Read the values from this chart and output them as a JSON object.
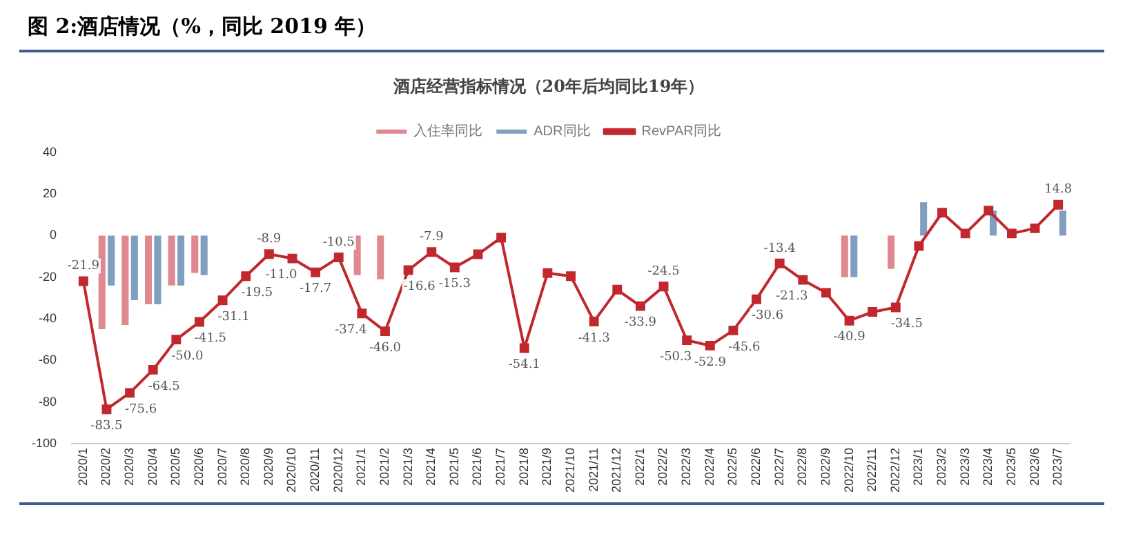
{
  "chart_data": {
    "type": "bar",
    "title": "图 2:酒店情况（%，同比 2019 年）",
    "subtitle": "酒店经营指标情况（20年后均同比19年）",
    "categories": [
      "2020/1",
      "2020/2",
      "2020/3",
      "2020/4",
      "2020/5",
      "2020/6",
      "2020/7",
      "2020/8",
      "2020/9",
      "2020/10",
      "2020/11",
      "2020/12",
      "2021/1",
      "2021/2",
      "2021/3",
      "2021/4",
      "2021/5",
      "2021/6",
      "2021/7",
      "2021/8",
      "2021/9",
      "2021/10",
      "2021/11",
      "2021/12",
      "2022/1",
      "2022/2",
      "2022/3",
      "2022/4",
      "2022/5",
      "2022/6",
      "2022/7",
      "2022/8",
      "2022/9",
      "2022/10",
      "2022/11",
      "2022/12",
      "2023/1",
      "2023/2",
      "2023/3",
      "2023/4",
      "2023/5",
      "2023/6",
      "2023/7"
    ],
    "series": [
      {
        "name": "入住率同比",
        "color": "#e08890",
        "values": [
          null,
          -45,
          -43,
          -33,
          -24,
          -18,
          null,
          null,
          null,
          null,
          null,
          null,
          -19,
          -21,
          null,
          null,
          null,
          null,
          null,
          null,
          null,
          null,
          null,
          null,
          null,
          null,
          null,
          null,
          null,
          null,
          null,
          null,
          null,
          -20,
          null,
          -16,
          null,
          null,
          null,
          null,
          null,
          null,
          null
        ]
      },
      {
        "name": "ADR同比",
        "color": "#7f9ec0",
        "values": [
          null,
          -24,
          -31,
          -33,
          -24,
          -19,
          null,
          null,
          null,
          null,
          null,
          null,
          null,
          null,
          null,
          null,
          null,
          null,
          null,
          null,
          null,
          null,
          null,
          null,
          null,
          null,
          null,
          null,
          null,
          null,
          null,
          null,
          null,
          -20,
          null,
          null,
          16,
          null,
          null,
          12,
          null,
          null,
          12
        ]
      },
      {
        "name": "RevPAR同比",
        "type": "line",
        "color": "#c0282d",
        "marker": "square",
        "values": [
          -21.9,
          -83.5,
          -75.6,
          -64.5,
          -50.0,
          -41.5,
          -31.1,
          -19.5,
          -8.9,
          -11.0,
          -17.7,
          -10.5,
          -37.4,
          -46.0,
          -16.6,
          -7.9,
          -15.3,
          -9,
          -1,
          -54.1,
          -18,
          -19.5,
          -41.3,
          -26,
          -33.9,
          -24.5,
          -50.3,
          -52.9,
          -45.6,
          -30.6,
          -13.4,
          -21.3,
          -27.5,
          -40.9,
          -36.7,
          -34.5,
          -5,
          11,
          1,
          12,
          1,
          3.5,
          14.8
        ],
        "value_labels": [
          "-21.9",
          "-83.5",
          "-75.6",
          "-64.5",
          "-50.0",
          "-41.5",
          "-31.1",
          "-19.5",
          "-8.9",
          "-11.0",
          "-17.7",
          "-10.5",
          "-37.4",
          "-46.0",
          "-16.6",
          "-7.9",
          "-15.3",
          null,
          null,
          "-54.1",
          null,
          null,
          "-41.3",
          null,
          "-33.9",
          "-24.5",
          "-50.3",
          "-52.9",
          "-45.6",
          "-30.6",
          "-13.4",
          "-21.3",
          null,
          "-40.9",
          null,
          "-34.5",
          null,
          null,
          null,
          null,
          null,
          null,
          "14.8"
        ]
      }
    ],
    "ylim": [
      -100,
      40
    ],
    "yticks": [
      -100,
      -80,
      -60,
      -40,
      -20,
      0,
      20,
      40
    ],
    "legend": "top"
  }
}
